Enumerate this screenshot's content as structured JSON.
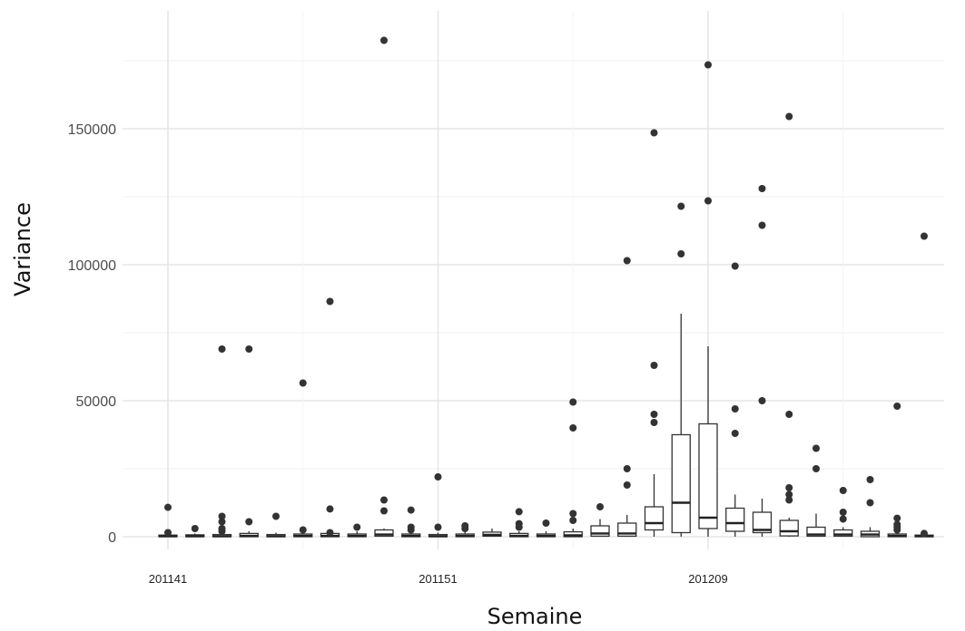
{
  "chart_data": {
    "type": "box",
    "xlabel": "Semaine",
    "ylabel": "Variance",
    "x_tick_labels": [
      "201141",
      "201151",
      "201209"
    ],
    "y_ticks": [
      0,
      50000,
      100000,
      150000
    ],
    "y_tick_labels": [
      "0",
      "50000",
      "100000",
      "150000"
    ],
    "ylim": [
      -5000,
      192000
    ],
    "grid": true,
    "boxes": [
      {
        "q1": 0,
        "median": 200,
        "q3": 600,
        "whisker_low": 0,
        "whisker_high": 1000,
        "outliers": [
          1500,
          10800
        ]
      },
      {
        "q1": 0,
        "median": 200,
        "q3": 700,
        "whisker_low": 0,
        "whisker_high": 1200,
        "outliers": [
          3000
        ]
      },
      {
        "q1": 0,
        "median": 200,
        "q3": 800,
        "whisker_low": 0,
        "whisker_high": 1500,
        "outliers": [
          2000,
          3000,
          5500,
          7500,
          69000
        ]
      },
      {
        "q1": 0,
        "median": 300,
        "q3": 1200,
        "whisker_low": 0,
        "whisker_high": 2000,
        "outliers": [
          5500,
          69000
        ]
      },
      {
        "q1": 0,
        "median": 200,
        "q3": 800,
        "whisker_low": 0,
        "whisker_high": 1500,
        "outliers": [
          7500
        ]
      },
      {
        "q1": 0,
        "median": 300,
        "q3": 1000,
        "whisker_low": 0,
        "whisker_high": 2000,
        "outliers": [
          2500,
          56500
        ]
      },
      {
        "q1": 0,
        "median": 300,
        "q3": 1200,
        "whisker_low": 0,
        "whisker_high": 2000,
        "outliers": [
          1500,
          10200,
          86500
        ]
      },
      {
        "q1": 0,
        "median": 300,
        "q3": 1000,
        "whisker_low": 0,
        "whisker_high": 2000,
        "outliers": [
          3500
        ]
      },
      {
        "q1": 200,
        "median": 800,
        "q3": 2500,
        "whisker_low": 0,
        "whisker_high": 3000,
        "outliers": [
          9500,
          13500,
          182500
        ]
      },
      {
        "q1": 0,
        "median": 300,
        "q3": 1000,
        "whisker_low": 0,
        "whisker_high": 2000,
        "outliers": [
          2500,
          3500,
          9800
        ]
      },
      {
        "q1": 0,
        "median": 200,
        "q3": 800,
        "whisker_low": 0,
        "whisker_high": 1500,
        "outliers": [
          3500,
          22000
        ]
      },
      {
        "q1": 0,
        "median": 300,
        "q3": 1000,
        "whisker_low": 0,
        "whisker_high": 2000,
        "outliers": [
          3000,
          4000
        ]
      },
      {
        "q1": 200,
        "median": 700,
        "q3": 1700,
        "whisker_low": 0,
        "whisker_high": 3000,
        "outliers": []
      },
      {
        "q1": 0,
        "median": 300,
        "q3": 1200,
        "whisker_low": 0,
        "whisker_high": 2000,
        "outliers": [
          3500,
          4800,
          9200
        ]
      },
      {
        "q1": 0,
        "median": 300,
        "q3": 1000,
        "whisker_low": 0,
        "whisker_high": 2000,
        "outliers": [
          5000
        ]
      },
      {
        "q1": 0,
        "median": 500,
        "q3": 1800,
        "whisker_low": 0,
        "whisker_high": 3000,
        "outliers": [
          6000,
          8500,
          40000,
          49500
        ]
      },
      {
        "q1": 200,
        "median": 1200,
        "q3": 4000,
        "whisker_low": 0,
        "whisker_high": 6500,
        "outliers": [
          11000
        ]
      },
      {
        "q1": 200,
        "median": 1200,
        "q3": 5000,
        "whisker_low": 0,
        "whisker_high": 8000,
        "outliers": [
          19000,
          25000,
          101500
        ]
      },
      {
        "q1": 2500,
        "median": 5000,
        "q3": 11000,
        "whisker_low": 0,
        "whisker_high": 23000,
        "outliers": [
          42000,
          45000,
          63000,
          148500
        ]
      },
      {
        "q1": 1500,
        "median": 12500,
        "q3": 37500,
        "whisker_low": 0,
        "whisker_high": 82000,
        "outliers": [
          104000,
          121500
        ]
      },
      {
        "q1": 3000,
        "median": 7000,
        "q3": 41500,
        "whisker_low": 0,
        "whisker_high": 70000,
        "outliers": [
          123500,
          173500
        ]
      },
      {
        "q1": 2000,
        "median": 5000,
        "q3": 10500,
        "whisker_low": 0,
        "whisker_high": 15500,
        "outliers": [
          38000,
          47000,
          99500
        ]
      },
      {
        "q1": 1500,
        "median": 2500,
        "q3": 9000,
        "whisker_low": 0,
        "whisker_high": 14000,
        "outliers": [
          50000,
          114500,
          128000
        ]
      },
      {
        "q1": 300,
        "median": 2000,
        "q3": 6000,
        "whisker_low": 0,
        "whisker_high": 7000,
        "outliers": [
          13500,
          15500,
          18000,
          45000,
          154500
        ]
      },
      {
        "q1": 200,
        "median": 800,
        "q3": 3500,
        "whisker_low": 0,
        "whisker_high": 8500,
        "outliers": [
          25000,
          32500
        ]
      },
      {
        "q1": 200,
        "median": 800,
        "q3": 2500,
        "whisker_low": 0,
        "whisker_high": 3500,
        "outliers": [
          6500,
          9000,
          17000
        ]
      },
      {
        "q1": 0,
        "median": 800,
        "q3": 2000,
        "whisker_low": 0,
        "whisker_high": 3500,
        "outliers": [
          12500,
          21000
        ]
      },
      {
        "q1": 0,
        "median": 300,
        "q3": 1000,
        "whisker_low": 0,
        "whisker_high": 2000,
        "outliers": [
          2500,
          3500,
          4500,
          6800,
          48000
        ]
      },
      {
        "q1": 0,
        "median": 200,
        "q3": 600,
        "whisker_low": 0,
        "whisker_high": 1000,
        "outliers": [
          1200,
          110500
        ]
      }
    ]
  }
}
